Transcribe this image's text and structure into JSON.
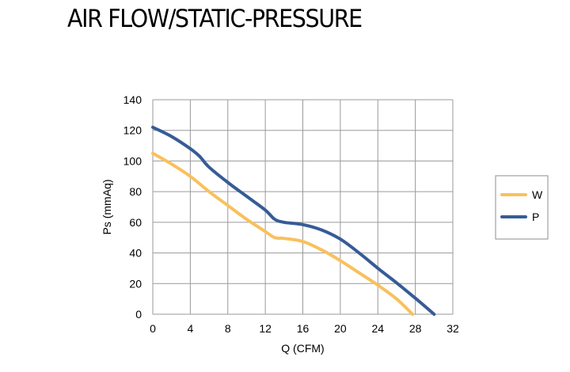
{
  "chart_data": {
    "type": "line",
    "title": "AIR FLOW/STATIC-PRESSURE",
    "xlabel": "Q (CFM)",
    "ylabel": "Ps (mmAq)",
    "xlim": [
      0,
      32
    ],
    "ylim": [
      0,
      140
    ],
    "xticks": [
      0,
      4,
      8,
      12,
      16,
      20,
      24,
      28,
      32
    ],
    "yticks": [
      0,
      20,
      40,
      60,
      80,
      100,
      120,
      140
    ],
    "grid": true,
    "legend": "right",
    "series": [
      {
        "name": "W",
        "color": "#f9c05c",
        "x": [
          0,
          2,
          4,
          6,
          8,
          10,
          12,
          13,
          14,
          16,
          18,
          20,
          22,
          24,
          26,
          27.7
        ],
        "y": [
          105,
          98,
          90,
          80,
          71,
          62,
          54,
          50,
          49.5,
          47.5,
          42,
          35,
          27,
          19,
          10,
          0
        ]
      },
      {
        "name": "P",
        "color": "#365c96",
        "x": [
          0,
          2,
          4,
          5,
          6,
          8,
          10,
          12,
          13,
          14,
          16,
          18,
          20,
          22,
          24,
          26,
          28,
          30
        ],
        "y": [
          122,
          116,
          108,
          103,
          96,
          86,
          77,
          68,
          62,
          60,
          58.5,
          55,
          49,
          40,
          30,
          20.5,
          10.5,
          0
        ]
      }
    ]
  }
}
